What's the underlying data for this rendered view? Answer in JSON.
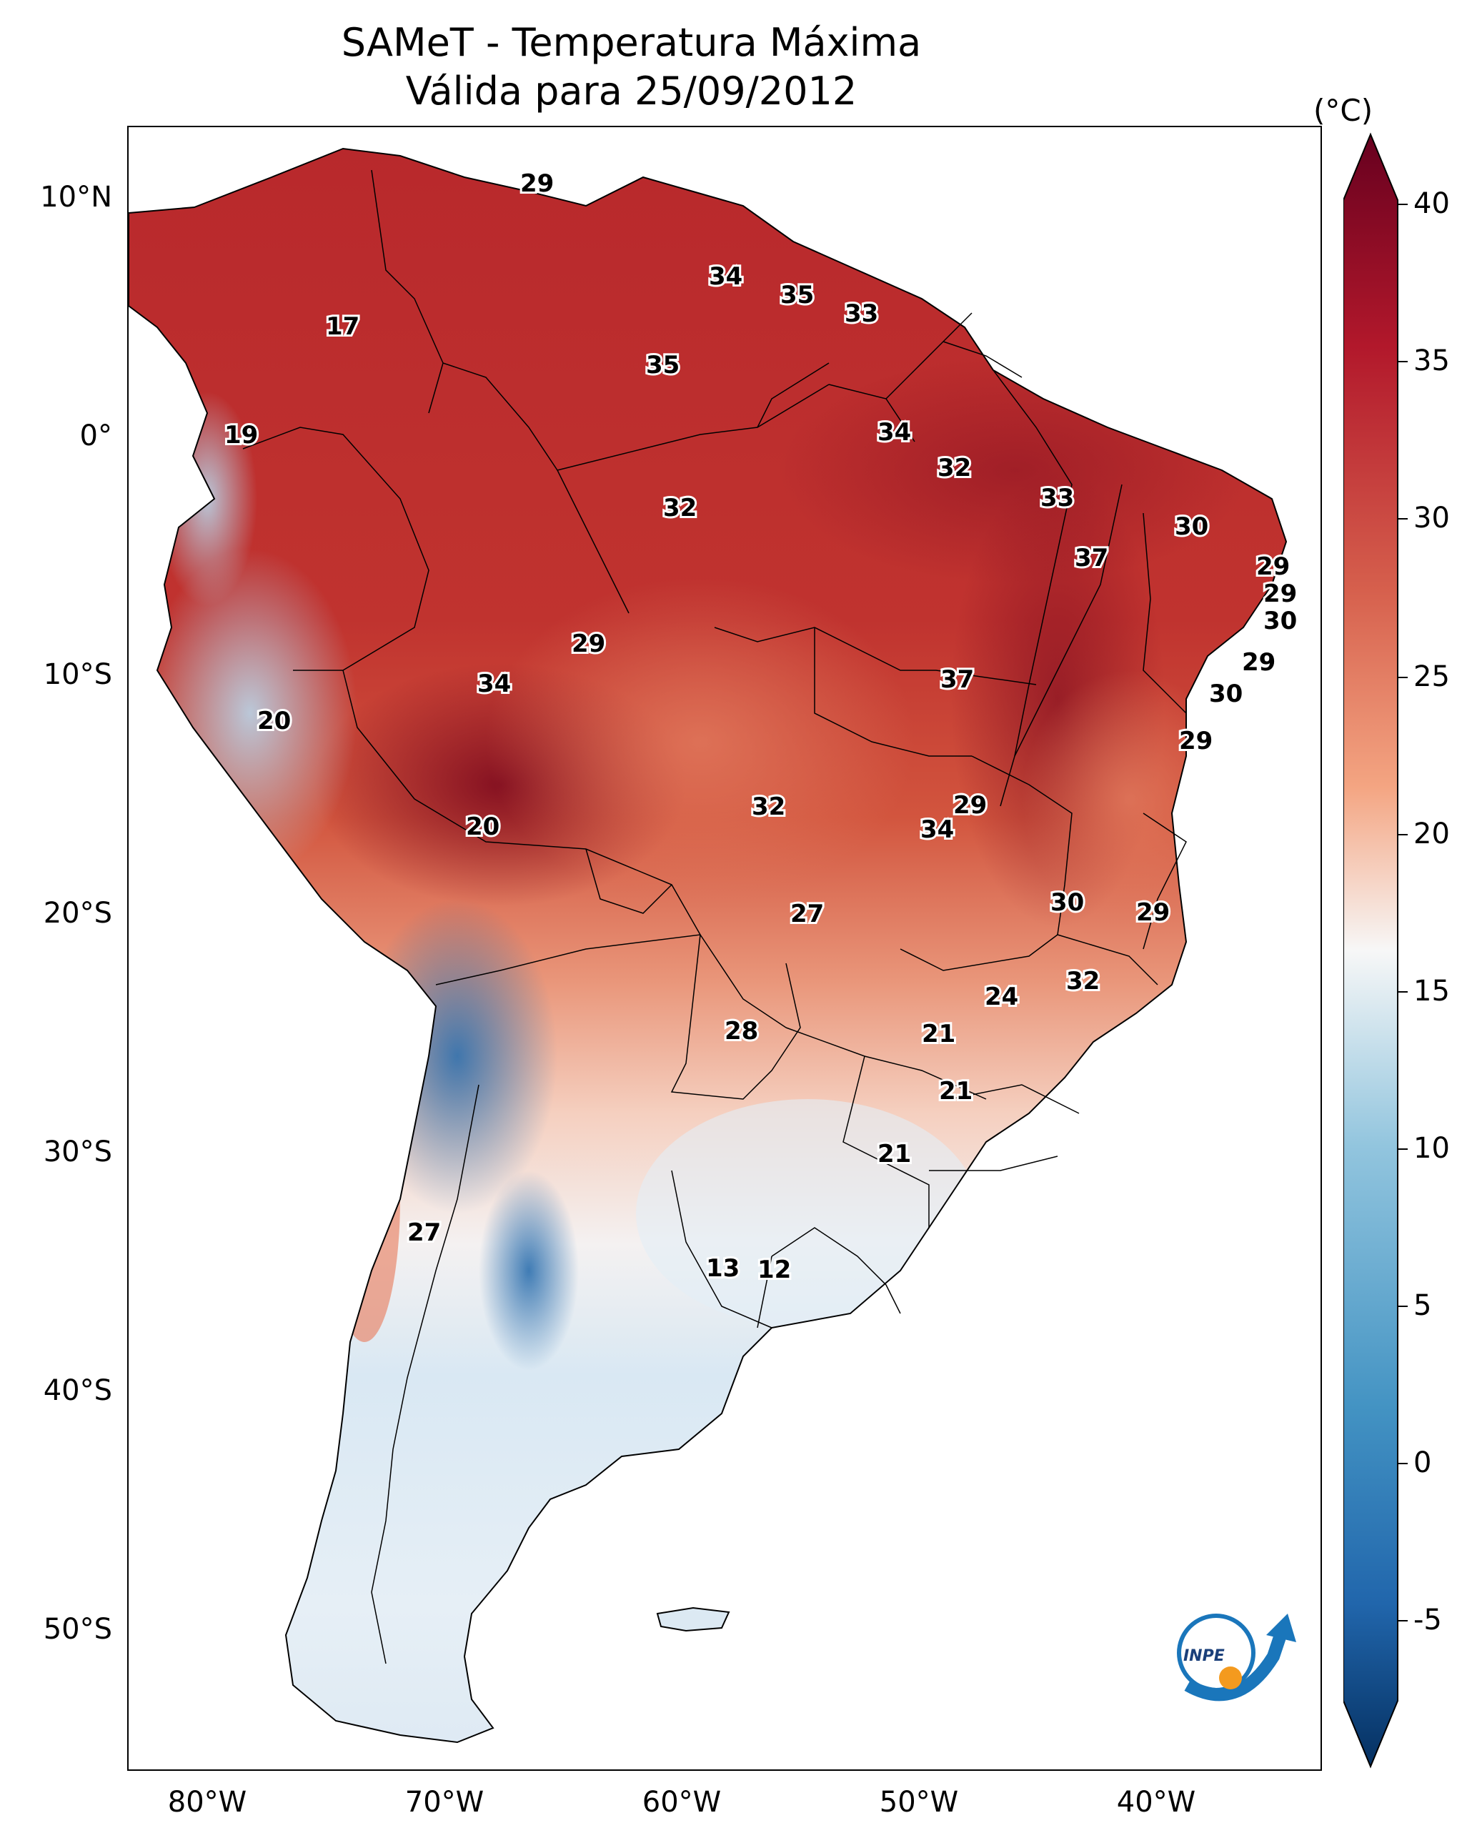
{
  "title_line1": "SAMeT - Temperatura Máxima",
  "title_line2": "Válida para 25/09/2012",
  "colorbar": {
    "unit": "(°C)",
    "ticks": [
      "40",
      "35",
      "30",
      "25",
      "20",
      "15",
      "10",
      "5",
      "0",
      "-5"
    ],
    "min": -7,
    "max": 42
  },
  "axes": {
    "lat_ticks": [
      "10°N",
      "0°",
      "10°S",
      "20°S",
      "30°S",
      "40°S",
      "50°S"
    ],
    "lon_ticks": [
      "80°W",
      "70°W",
      "60°W",
      "50°W",
      "40°W"
    ]
  },
  "logo_text": "INPE",
  "station_values": [
    {
      "v": "29"
    },
    {
      "v": "34"
    },
    {
      "v": "35"
    },
    {
      "v": "33"
    },
    {
      "v": "17"
    },
    {
      "v": "35"
    },
    {
      "v": "19"
    },
    {
      "v": "34"
    },
    {
      "v": "32"
    },
    {
      "v": "32"
    },
    {
      "v": "33"
    },
    {
      "v": "30"
    },
    {
      "v": "37"
    },
    {
      "v": "29"
    },
    {
      "v": "29"
    },
    {
      "v": "30"
    },
    {
      "v": "29"
    },
    {
      "v": "29"
    },
    {
      "v": "34"
    },
    {
      "v": "37"
    },
    {
      "v": "30"
    },
    {
      "v": "20"
    },
    {
      "v": "29"
    },
    {
      "v": "20"
    },
    {
      "v": "32"
    },
    {
      "v": "29"
    },
    {
      "v": "34"
    },
    {
      "v": "30"
    },
    {
      "v": "29"
    },
    {
      "v": "27"
    },
    {
      "v": "32"
    },
    {
      "v": "24"
    },
    {
      "v": "28"
    },
    {
      "v": "21"
    },
    {
      "v": "21"
    },
    {
      "v": "21"
    },
    {
      "v": "27"
    },
    {
      "v": "13"
    },
    {
      "v": "12"
    }
  ]
}
